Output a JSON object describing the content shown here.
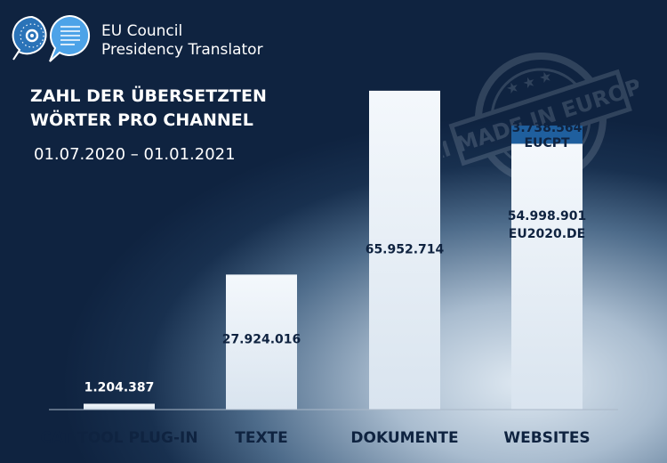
{
  "brand": {
    "line1": "EU Council",
    "line2": "Presidency Translator"
  },
  "stamp_text": "AI MADE IN EUROPE",
  "colors": {
    "background": "#0f2340",
    "bar": "#e8f0f8",
    "accent": "#1f5f9e",
    "text_dark": "#0f2340"
  },
  "chart_data": {
    "type": "bar",
    "title": "ZAHL DER ÜBERSETZTEN WÖRTER PRO CHANNEL",
    "subtitle": "01.07.2020 – 01.01.2021",
    "categories": [
      "CAT TOOL PLUG-IN",
      "TEXTE",
      "DOKUMENTE",
      "WEBSITES"
    ],
    "series": [
      {
        "name": "",
        "values": [
          1204387,
          27924016,
          65952714,
          54998901
        ]
      },
      {
        "name": "EUCPT",
        "values": [
          0,
          0,
          0,
          3738564
        ]
      }
    ],
    "value_labels": [
      "1.204.387",
      "27.924.016",
      "65.952.714",
      "54.998.901"
    ],
    "segment_labels": {
      "base_websites": "EU2020.DE",
      "top_websites": "3.738.564",
      "top_websites_name": "EUCPT"
    },
    "ylim": [
      0,
      70000000
    ],
    "grid": false,
    "legend": "none",
    "xlabel": "",
    "ylabel": ""
  }
}
